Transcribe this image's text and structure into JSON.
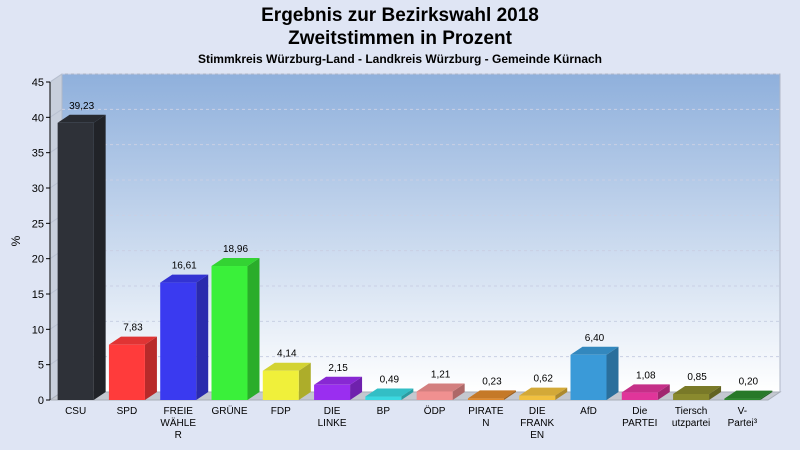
{
  "chart_data": {
    "type": "bar",
    "title_line1": "Ergebnis zur Bezirkswahl 2018",
    "title_line2": "Zweitstimmen in Prozent",
    "subtitle": "Stimmkreis Würzburg-Land - Landkreis Würzburg - Gemeinde Kürnach",
    "ylabel": "%",
    "xlabel": "",
    "ylim": [
      0,
      45
    ],
    "yticks": [
      0,
      5,
      10,
      15,
      20,
      25,
      30,
      35,
      40,
      45
    ],
    "grid": true,
    "categories": [
      [
        "CSU"
      ],
      [
        "SPD"
      ],
      [
        "FREIE",
        "WÄHLE",
        "R"
      ],
      [
        "GRÜNE"
      ],
      [
        "FDP"
      ],
      [
        "DIE",
        "LINKE"
      ],
      [
        "BP"
      ],
      [
        "ÖDP"
      ],
      [
        "PIRATE",
        "N"
      ],
      [
        "DIE",
        "FRANK",
        "EN"
      ],
      [
        "AfD"
      ],
      [
        "Die",
        "PARTEI"
      ],
      [
        "Tiersch",
        "utzpartei"
      ],
      [
        "V-",
        "Partei³"
      ]
    ],
    "values": [
      39.23,
      7.83,
      16.61,
      18.96,
      4.14,
      2.15,
      0.49,
      1.21,
      0.23,
      0.62,
      6.4,
      1.08,
      0.85,
      0.2
    ],
    "value_labels": [
      "39,23",
      "7,83",
      "16,61",
      "18,96",
      "4,14",
      "2,15",
      "0,49",
      "1,21",
      "0,23",
      "0,62",
      "6,40",
      "1,08",
      "0,85",
      "0,20"
    ],
    "colors": [
      "#2e3138",
      "#ff3b3b",
      "#3a3af0",
      "#3af03a",
      "#f0f03a",
      "#9a2ef0",
      "#3ad8e0",
      "#f09090",
      "#e08a2e",
      "#f0c040",
      "#3a9ad8",
      "#e0359a",
      "#8a8a2e",
      "#2e8a2e"
    ]
  }
}
